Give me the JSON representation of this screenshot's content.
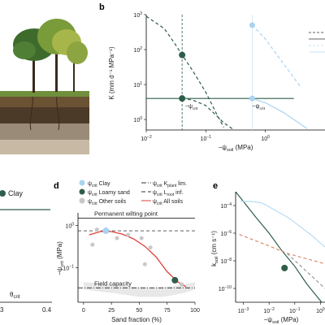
{
  "panels": {
    "b": "b",
    "d": "d",
    "e": "e"
  },
  "colors": {
    "clay": "#a9d3f2",
    "loamy_sand": "#2e5e4a",
    "other": "#c8c8c8",
    "all_soils": "#e0413d",
    "ksoil_dashed": "#d98a6a",
    "ksoil_solid": "#2e5e4a",
    "ksoil_light": "#b8dcf4",
    "guide": "#999999"
  },
  "left_panel": {
    "clay_label": "Clay",
    "theta_label": "θ",
    "theta_sub": "crit",
    "tick_left": "3",
    "tick_right": "0.4"
  },
  "chart_data": [
    {
      "panel": "b",
      "type": "line",
      "xlabel": "−ψ",
      "xlabel_sub": "soil",
      "xlabel_unit": "(MPa)",
      "ylabel": "K (mm d⁻¹ MPa⁻¹)",
      "x_scale": "log",
      "y_scale": "log",
      "xlim": [
        0.01,
        10
      ],
      "ylim": [
        0.5,
        1000
      ],
      "x_ticks": [
        {
          "v": 0.01,
          "base": "10",
          "exp": "−2"
        },
        {
          "v": 0.1,
          "base": "10",
          "exp": "−1"
        },
        {
          "v": 1,
          "base": "10",
          "exp": "0"
        }
      ],
      "y_ticks": [
        {
          "v": 1,
          "base": "10",
          "exp": "0"
        },
        {
          "v": 10,
          "base": "10",
          "exp": "1"
        },
        {
          "v": 100,
          "base": "10",
          "exp": "2"
        },
        {
          "v": 1000,
          "base": "10",
          "exp": "3"
        }
      ],
      "annotations": [
        {
          "text": "−ψ",
          "sub": "crit",
          "x": 0.045,
          "y": 2.1
        },
        {
          "text": "−ψ",
          "sub": "crit",
          "x": 0.6,
          "y": 2.1
        }
      ],
      "vlines": [
        {
          "x": 0.04,
          "style": "dashed"
        },
        {
          "x": 0.6,
          "style": "solid-light"
        }
      ],
      "series": [
        {
          "role": "plant_K",
          "color": "#2e5e4a",
          "dash": "none",
          "x": [
            0.01,
            0.02,
            0.04,
            0.06,
            0.1,
            0.2,
            0.5,
            1,
            3
          ],
          "y": [
            4,
            4,
            4,
            4,
            4,
            4,
            4,
            4,
            4
          ]
        },
        {
          "role": "soil_K_loamy_sand",
          "color": "#2e5e4a",
          "dash": "4,3",
          "x": [
            0.01,
            0.02,
            0.03,
            0.04,
            0.06,
            0.1,
            0.15,
            0.2
          ],
          "y": [
            900,
            400,
            150,
            70,
            25,
            6,
            1.5,
            0.6
          ]
        },
        {
          "role": "soil_K_loamy_sand_2",
          "color": "#2e5e4a",
          "dash": "4,3",
          "x": [
            0.04,
            0.06,
            0.1,
            0.15,
            0.2,
            0.3
          ],
          "y": [
            4,
            3.6,
            2.5,
            1.3,
            0.8,
            0.5
          ]
        },
        {
          "role": "soil_K_clay",
          "color": "#a9d3f2",
          "dash": "4,3",
          "x": [
            0.6,
            1,
            2,
            4
          ],
          "y": [
            500,
            200,
            40,
            8
          ]
        },
        {
          "role": "plant_K_clay",
          "color": "#a9d3f2",
          "dash": "none",
          "x": [
            0.6,
            1,
            2,
            3,
            5
          ],
          "y": [
            4,
            3,
            1.6,
            1,
            0.55
          ]
        }
      ],
      "points": [
        {
          "x": 0.04,
          "y": 70,
          "color": "#2e5e4a",
          "size": 4
        },
        {
          "x": 0.04,
          "y": 4,
          "color": "#2e5e4a",
          "size": 4
        },
        {
          "x": 0.6,
          "y": 500,
          "color": "#a9d3f2",
          "size": 3.5
        },
        {
          "x": 0.6,
          "y": 4,
          "color": "#a9d3f2",
          "size": 3.5
        }
      ]
    },
    {
      "panel": "d",
      "type": "scatter",
      "xlabel": "Sand fraction (%)",
      "ylabel": "−ψ",
      "ylabel_sub": "crit",
      "ylabel_unit": "(MPa)",
      "x_scale": "linear",
      "y_scale": "log",
      "xlim": [
        -5,
        100
      ],
      "ylim": [
        0.015,
        2
      ],
      "x_ticks": [
        0,
        25,
        50,
        75,
        100
      ],
      "y_ticks": [
        {
          "v": 0.1,
          "base": "10",
          "exp": "−1"
        },
        {
          "v": 1,
          "base": "10",
          "exp": "0"
        }
      ],
      "hlines": [
        {
          "y": 1.5,
          "label": "Permanent wilting point",
          "style": "solid"
        },
        {
          "y": 0.75,
          "style": "dashed"
        },
        {
          "y": 0.033,
          "label": "Field capacity",
          "style": "dashdot"
        }
      ],
      "legend": [
        {
          "type": "marker",
          "color": "#a9d3f2",
          "text": "ψ",
          "sub": "crit",
          "suffix": " Clay"
        },
        {
          "type": "marker",
          "color": "#2e5e4a",
          "text": "ψ",
          "sub": "crit",
          "suffix": " Loamy sand"
        },
        {
          "type": "marker",
          "color": "#c8c8c8",
          "text": "ψ",
          "sub": "crit",
          "suffix": " Other soils"
        },
        {
          "type": "line",
          "dash": "6,2,1,2",
          "color": "#333",
          "text": "ψ",
          "sub": "crit",
          "suffix": " K",
          "suffix_sub": "plant",
          "suffix_tail": " lim."
        },
        {
          "type": "line",
          "dash": "5,3",
          "color": "#333",
          "text": "ψ",
          "sub": "crit",
          "suffix": " L",
          "suffix_sub": "root",
          "suffix_tail": " inf."
        },
        {
          "type": "line",
          "dash": "none",
          "color": "#e0413d",
          "text": "ψ",
          "sub": "crit",
          "suffix": " All soils"
        }
      ],
      "series": [
        {
          "role": "fit_all_soils",
          "color": "#e0413d",
          "x": [
            5,
            15,
            25,
            35,
            45,
            55,
            65,
            75,
            85,
            92
          ],
          "y": [
            0.6,
            0.72,
            0.72,
            0.62,
            0.48,
            0.32,
            0.18,
            0.08,
            0.045,
            0.035
          ]
        }
      ],
      "band": {
        "x": [
          0,
          10,
          20,
          30,
          40,
          50,
          60,
          70,
          80,
          90,
          100
        ],
        "lower": [
          0.03,
          0.028,
          0.026,
          0.024,
          0.022,
          0.02,
          0.02,
          0.02,
          0.022,
          0.025,
          0.03
        ],
        "upper": [
          0.045,
          0.043,
          0.04,
          0.038,
          0.036,
          0.034,
          0.034,
          0.034,
          0.036,
          0.04,
          0.045
        ]
      },
      "points": [
        {
          "x": 8,
          "y": 0.35,
          "color": "#c8c8c8"
        },
        {
          "x": 12,
          "y": 0.8,
          "color": "#c8c8c8"
        },
        {
          "x": 20,
          "y": 0.75,
          "color": "#a9d3f2"
        },
        {
          "x": 30,
          "y": 0.5,
          "color": "#c8c8c8"
        },
        {
          "x": 40,
          "y": 0.6,
          "color": "#c8c8c8"
        },
        {
          "x": 52,
          "y": 0.5,
          "color": "#c8c8c8"
        },
        {
          "x": 55,
          "y": 0.12,
          "color": "#c8c8c8"
        },
        {
          "x": 60,
          "y": 0.3,
          "color": "#c8c8c8"
        },
        {
          "x": 82,
          "y": 0.05,
          "color": "#2e5e4a"
        },
        {
          "x": 88,
          "y": 0.04,
          "color": "#c8c8c8"
        }
      ]
    },
    {
      "panel": "e",
      "type": "line",
      "xlabel": "−ψ",
      "xlabel_sub": "soil",
      "xlabel_unit": "(MPa)",
      "ylabel": "k",
      "ylabel_sub": "soil",
      "ylabel_unit": "(cm s⁻¹)",
      "x_scale": "log",
      "y_scale": "log",
      "xlim": [
        0.0005,
        1.5
      ],
      "ylim": [
        1e-11,
        0.001
      ],
      "x_ticks": [
        {
          "v": 0.001,
          "base": "10",
          "exp": "−3"
        },
        {
          "v": 0.01,
          "base": "10",
          "exp": "−2"
        },
        {
          "v": 0.1,
          "base": "10",
          "exp": "−1"
        },
        {
          "v": 1,
          "base": "10",
          "exp": "0"
        }
      ],
      "y_ticks": [
        {
          "v": 1e-10,
          "base": "10",
          "exp": "−10"
        },
        {
          "v": 1e-08,
          "base": "10",
          "exp": "−8"
        },
        {
          "v": 1e-06,
          "base": "10",
          "exp": "−6"
        },
        {
          "v": 0.0001,
          "base": "10",
          "exp": "−4"
        }
      ],
      "series": [
        {
          "role": "loamy_sand",
          "color": "#2e5e4a",
          "dash": "none",
          "x": [
            0.0005,
            0.001,
            0.003,
            0.01,
            0.03,
            0.1,
            0.3,
            1.5
          ],
          "y": [
            0.001,
            0.0002,
            1.5e-05,
            1e-06,
            6e-08,
            4e-09,
            2e-10,
            5e-12
          ]
        },
        {
          "role": "clay",
          "color": "#b8dcf4",
          "dash": "none",
          "x": [
            0.0008,
            0.002,
            0.005,
            0.01,
            0.05,
            0.1,
            0.5,
            1.5
          ],
          "y": [
            0.0002,
            0.0002,
            0.00016,
            8e-05,
            1.5e-05,
            6e-06,
            6e-07,
            1e-07
          ]
        },
        {
          "role": "dashed_reference",
          "color": "#d98a6a",
          "dash": "4,3",
          "x": [
            0.0007,
            0.01,
            0.05,
            1.5
          ],
          "y": [
            8e-07,
            1.2e-07,
            3.5e-08,
            6e-09
          ]
        },
        {
          "role": "dashed_gray",
          "color": "#999999",
          "dash": "4,3",
          "x": [
            0.05,
            1.5
          ],
          "y": [
            3.5e-08,
            1e-10
          ]
        }
      ],
      "points": [
        {
          "x": 0.04,
          "y": 3e-09,
          "color": "#2e5e4a"
        }
      ]
    }
  ]
}
